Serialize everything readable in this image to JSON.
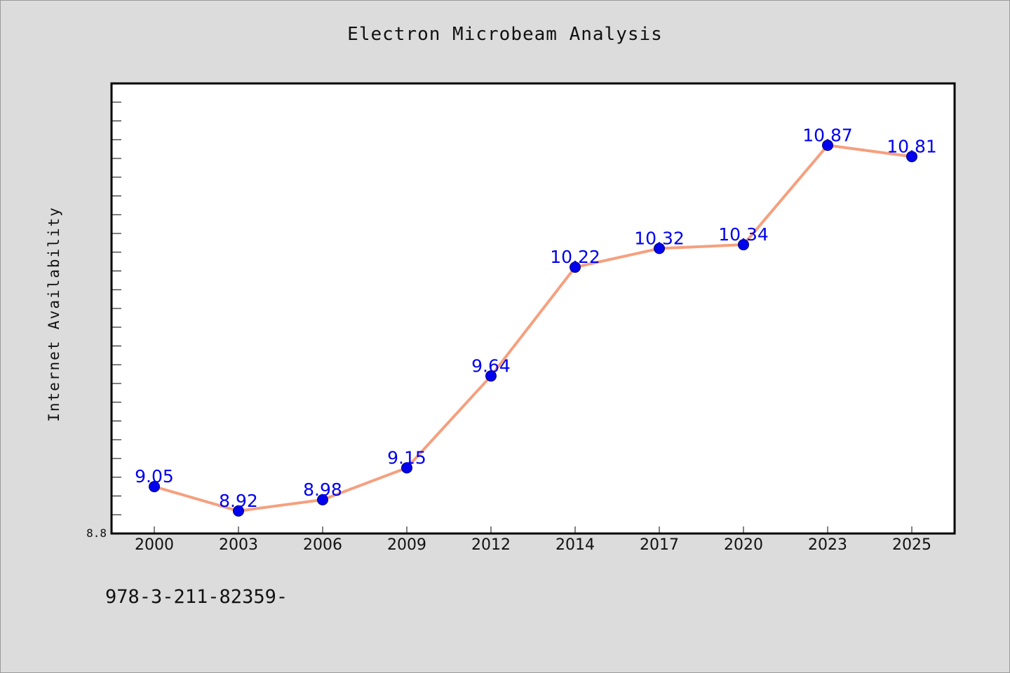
{
  "chart_data": {
    "type": "line",
    "title": "Electron Microbeam Analysis",
    "xlabel": "",
    "ylabel": "Internet Availability",
    "categories": [
      "2000",
      "2003",
      "2006",
      "2009",
      "2012",
      "2014",
      "2017",
      "2020",
      "2023",
      "2025"
    ],
    "series": [
      {
        "values": [
          9.05,
          8.92,
          8.98,
          9.15,
          9.64,
          10.22,
          10.32,
          10.34,
          10.87,
          10.81
        ],
        "labels": [
          "9.05",
          "8.92",
          "8.98",
          "9.15",
          "9.64",
          "10.22",
          "10.32",
          "10.34",
          "10.87",
          "10.81"
        ]
      }
    ],
    "ylim": [
      8.8,
      11.2
    ],
    "ytick_label": "8.8",
    "grid": false,
    "legend": "none"
  },
  "footer": {
    "text": "978-3-211-82359-"
  },
  "colors": {
    "line": "#f5a07f",
    "marker": "#0000ee",
    "data_label": "#0000ee",
    "plot_background": "#ffffff",
    "page_background": "#dcdcdc"
  }
}
